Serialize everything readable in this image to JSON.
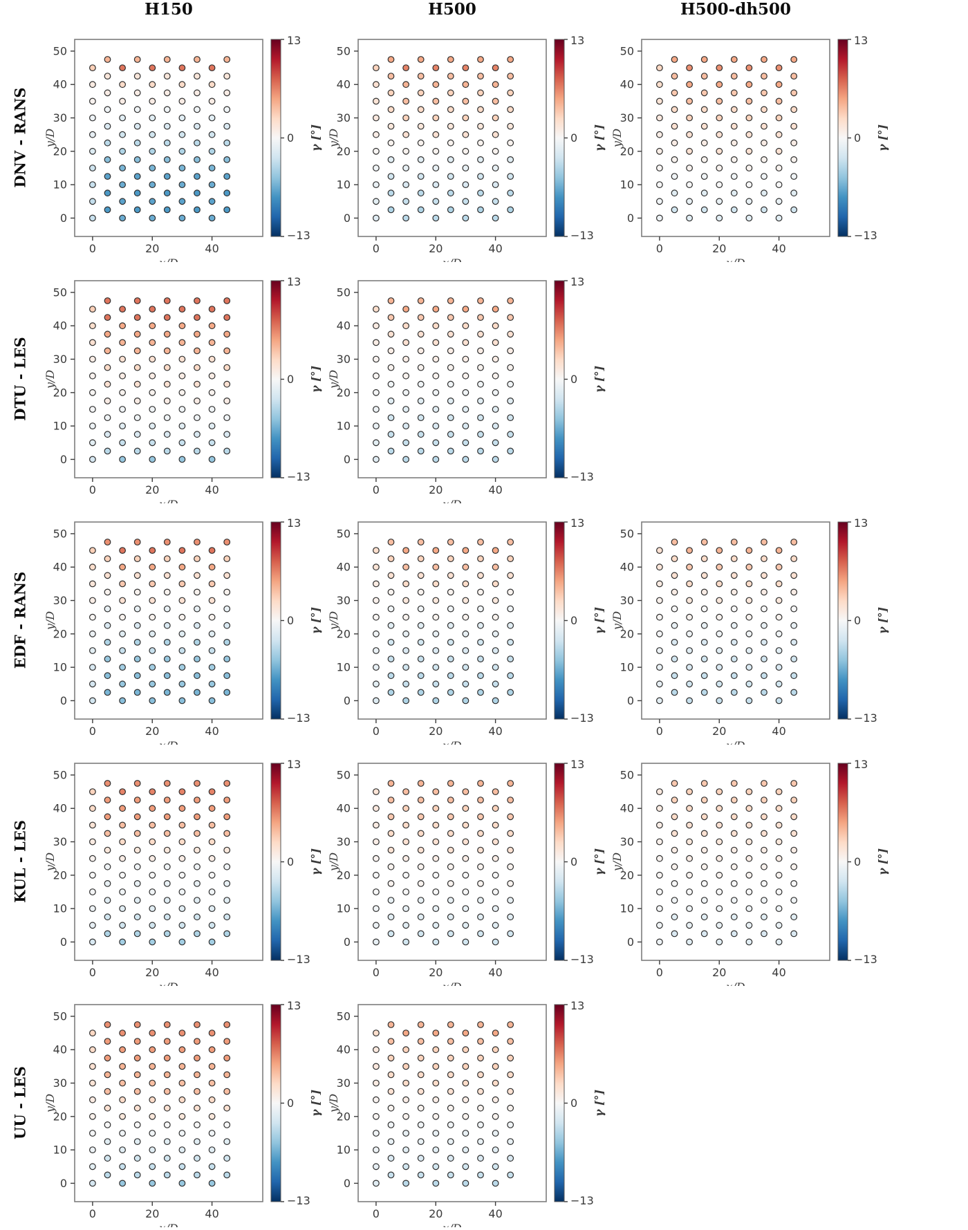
{
  "figure": {
    "column_titles": [
      "H150",
      "H500",
      "H500-dh500"
    ],
    "row_labels": [
      "DNV - RANS",
      "DTU - LES",
      "EDF - RANS",
      "KUL - LES",
      "UU - LES"
    ],
    "xlabel": "x/D",
    "ylabel": "y/D",
    "colorbar_label": "γ [°]",
    "colorbar_ticks": [
      "13",
      "0",
      "−13"
    ]
  },
  "chart_data": {
    "type": "scatter",
    "description": "5x3 grid of wind-farm turbine-layout scatter plots; marker color = yaw angle gamma in degrees, colormap RdBu_r from -13 (dark blue) to +13 (dark red). Two panels (DTU-LES and UU-LES at H500-dh500) are absent.",
    "rows": [
      "DNV - RANS",
      "DTU - LES",
      "EDF - RANS",
      "KUL - LES",
      "UU - LES"
    ],
    "columns": [
      "H150",
      "H500",
      "H500-dh500"
    ],
    "xlabel": "x/D",
    "ylabel": "y/D",
    "xlim": [
      -6,
      57
    ],
    "ylim": [
      -5.5,
      53.5
    ],
    "x_ticks": [
      0,
      20,
      40
    ],
    "y_ticks": [
      0,
      10,
      20,
      30,
      40,
      50
    ],
    "x_turbine_columns": [
      0,
      5,
      10,
      15,
      20,
      25,
      30,
      35,
      40,
      45
    ],
    "y_levels": [
      0,
      2.5,
      5,
      7.5,
      10,
      12.5,
      15,
      17.5,
      20,
      22.5,
      25,
      27.5,
      30,
      32.5,
      35,
      37.5,
      40,
      42.5,
      45,
      47.5
    ],
    "stagger_rule": "x-columns with even index use even-index y-levels (0,5,...,45); odd-index x-columns use odd-index y-levels (2.5,...,47.5)",
    "first_column_gamma_scale": 0.45,
    "colorbar": {
      "label": "γ [°]",
      "vmin": -13,
      "vmax": 13,
      "ticks": [
        13,
        0,
        -13
      ],
      "colormap": "RdBu_r",
      "anchors": [
        "#053061",
        "#2166ac",
        "#4393c3",
        "#92c5de",
        "#d1e5f0",
        "#f7f7f7",
        "#fddbc7",
        "#f4a582",
        "#d6604d",
        "#b2182b",
        "#67001f"
      ]
    },
    "grid_gamma_by_level": [
      [
        [
          -6.5,
          -7.5,
          -7,
          -7.5,
          -6.5,
          -7,
          -6,
          -5.5,
          -4,
          -3.5,
          -2.5,
          -2,
          -1.5,
          -0.5,
          1,
          1,
          2.5,
          1.5,
          7,
          4.5
        ],
        [
          -3.5,
          -4,
          -3,
          -3.5,
          -2,
          -2.5,
          -1,
          -1.5,
          0.5,
          0.5,
          2,
          1.5,
          3,
          2.5,
          4,
          3,
          4.5,
          4,
          6.5,
          5
        ],
        [
          -1.5,
          -2.5,
          -1,
          -1.5,
          0,
          -0.5,
          0.5,
          0.5,
          2,
          1,
          2,
          2,
          3,
          2.5,
          4,
          3.5,
          5,
          4,
          6,
          5
        ]
      ],
      [
        [
          -5,
          -3.5,
          -3,
          -2,
          -1.5,
          -0.5,
          -0.5,
          1,
          0.5,
          2,
          1,
          2.5,
          2,
          4.5,
          4.5,
          5,
          5,
          7,
          7,
          7
        ],
        [
          -3.5,
          -3.5,
          -3,
          -3,
          -2,
          -2.5,
          -1.5,
          -1.5,
          -0.5,
          -0.5,
          0.5,
          0.5,
          1,
          1,
          2,
          2,
          2.5,
          3.5,
          5,
          4.5
        ],
        null
      ],
      [
        [
          -5.5,
          -6,
          -5,
          -5.5,
          -4.5,
          -5,
          -3,
          -4,
          -1.5,
          -2,
          0.5,
          -1,
          2,
          0.5,
          3.5,
          2,
          5,
          3,
          7,
          6
        ],
        [
          -4,
          -4,
          -3,
          -3.5,
          -2.5,
          -3,
          -2,
          -2.5,
          -1,
          -1.5,
          0.5,
          -0.5,
          1.5,
          0.5,
          2.5,
          2,
          4,
          3,
          5,
          4
        ],
        [
          -3,
          -3.5,
          -2.5,
          -3,
          -2,
          -2.5,
          -1.5,
          -2,
          -0.5,
          -1,
          0.5,
          0,
          1.5,
          1,
          2.5,
          2,
          3.5,
          2.5,
          4.5,
          4
        ]
      ],
      [
        [
          -4.5,
          -4,
          -2.5,
          -2.5,
          -1.5,
          -1.5,
          -0.5,
          -1,
          0,
          -0.5,
          1,
          1.5,
          2.5,
          4,
          4,
          5.5,
          5.5,
          5.5,
          6.5,
          6
        ],
        [
          -2.5,
          -2.5,
          -1.5,
          -1.5,
          -1,
          -1,
          0,
          0.5,
          0,
          0.5,
          1,
          2,
          2,
          2.5,
          2.5,
          3.5,
          3,
          4,
          4,
          4.5
        ],
        [
          -1.5,
          -2,
          -1,
          -1.5,
          -0.5,
          -0.5,
          0,
          0,
          0.5,
          0.5,
          1,
          1,
          1.5,
          2,
          2,
          2.5,
          2.5,
          3,
          3,
          3.5
        ]
      ],
      [
        [
          -5,
          -3.5,
          -3,
          -2.5,
          -1.5,
          -1.5,
          -0.5,
          0,
          1.5,
          2,
          2.5,
          4,
          4,
          4.5,
          4.5,
          5.5,
          5.5,
          5.5,
          6,
          6
        ],
        [
          -3.5,
          -3,
          -2.5,
          -2,
          -1.5,
          -1,
          -1,
          -0.5,
          0.5,
          0.5,
          1,
          2,
          2.5,
          2.5,
          3,
          3,
          3,
          4,
          5,
          4.5
        ],
        null
      ]
    ]
  }
}
